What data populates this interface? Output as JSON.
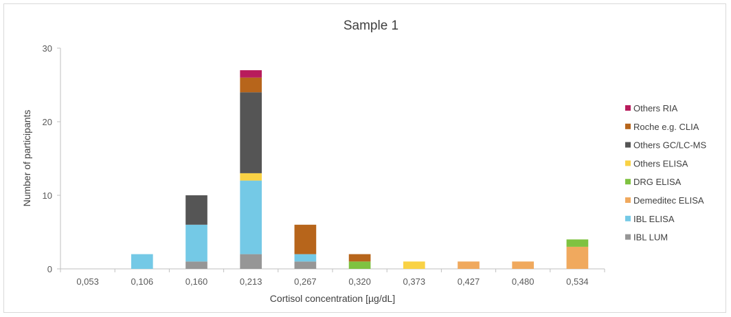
{
  "chart_data": {
    "type": "bar",
    "stacked": true,
    "title": "Sample 1",
    "xlabel": "Cortisol concentration [µg/dL]",
    "ylabel": "Number of participants",
    "categories": [
      "0,053",
      "0,106",
      "0,160",
      "0,213",
      "0,267",
      "0,320",
      "0,373",
      "0,427",
      "0,480",
      "0,534"
    ],
    "ylim": [
      0,
      30
    ],
    "yticks": [
      0,
      10,
      20,
      30
    ],
    "grid": false,
    "legend_position": "right",
    "series": [
      {
        "name": "IBL LUM",
        "color": "#969696",
        "values": [
          0,
          0,
          1,
          2,
          1,
          0,
          0,
          0,
          0,
          0
        ]
      },
      {
        "name": "IBL ELISA",
        "color": "#74c9e6",
        "values": [
          0,
          2,
          5,
          10,
          1,
          0,
          0,
          0,
          0,
          0
        ]
      },
      {
        "name": "Demeditec ELISA",
        "color": "#f0a95e",
        "values": [
          0,
          0,
          0,
          0,
          0,
          0,
          0,
          1,
          1,
          3
        ]
      },
      {
        "name": "DRG ELISA",
        "color": "#7fc241",
        "values": [
          0,
          0,
          0,
          0,
          0,
          1,
          0,
          0,
          0,
          1
        ]
      },
      {
        "name": "Others ELISA",
        "color": "#f9d245",
        "values": [
          0,
          0,
          0,
          1,
          0,
          0,
          1,
          0,
          0,
          0
        ]
      },
      {
        "name": "Others GC/LC-MS",
        "color": "#555555",
        "values": [
          0,
          0,
          4,
          11,
          0,
          0,
          0,
          0,
          0,
          0
        ]
      },
      {
        "name": "Roche e.g. CLIA",
        "color": "#b7651b",
        "values": [
          0,
          0,
          0,
          2,
          4,
          1,
          0,
          0,
          0,
          0
        ]
      },
      {
        "name": "Others RIA",
        "color": "#b81c5c",
        "values": [
          0,
          0,
          0,
          1,
          0,
          0,
          0,
          0,
          0,
          0
        ]
      }
    ]
  }
}
